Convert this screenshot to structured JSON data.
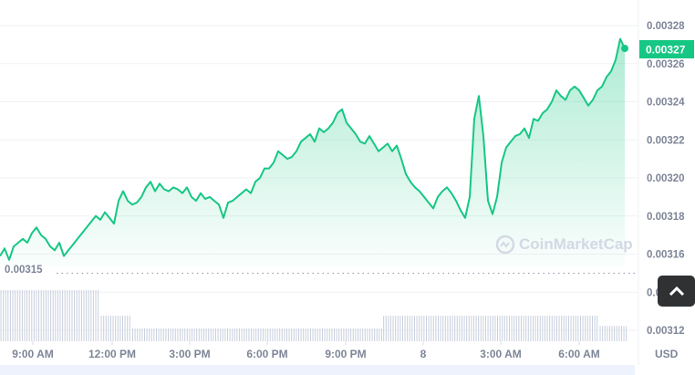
{
  "chart_data": {
    "type": "area",
    "currency": "USD",
    "current_price_label": "0.00327",
    "baseline_label": "0.00315",
    "baseline": 0.00315,
    "ylim": [
      0.00311,
      0.00329
    ],
    "y_ticks": [
      "0.00328",
      "0.00326",
      "0.00324",
      "0.00322",
      "0.00320",
      "0.00318",
      "0.00316",
      "0.00314",
      "0.00312"
    ],
    "x_ticks": [
      "9:00 AM",
      "12:00 PM",
      "3:00 PM",
      "6:00 PM",
      "9:00 PM",
      "8",
      "3:00 AM",
      "6:00 AM"
    ],
    "grid": true,
    "line_color": "#16c784",
    "watermark": "CoinMarketCap",
    "values": [
      0.003159,
      0.003163,
      0.003157,
      0.003164,
      0.003166,
      0.003168,
      0.003166,
      0.003171,
      0.003174,
      0.00317,
      0.003168,
      0.003164,
      0.003162,
      0.003166,
      0.003159,
      0.003162,
      0.003165,
      0.003168,
      0.003171,
      0.003174,
      0.003177,
      0.00318,
      0.003178,
      0.003182,
      0.003179,
      0.003176,
      0.003188,
      0.003193,
      0.003188,
      0.003186,
      0.003187,
      0.00319,
      0.003195,
      0.003198,
      0.003193,
      0.003197,
      0.003194,
      0.003193,
      0.003195,
      0.003194,
      0.003192,
      0.003195,
      0.00319,
      0.003188,
      0.003192,
      0.003189,
      0.00319,
      0.003188,
      0.003186,
      0.003179,
      0.003187,
      0.003188,
      0.00319,
      0.003192,
      0.003194,
      0.003192,
      0.003198,
      0.0032,
      0.003205,
      0.003205,
      0.003208,
      0.003214,
      0.003212,
      0.00321,
      0.003211,
      0.003214,
      0.003219,
      0.003221,
      0.003223,
      0.003219,
      0.003226,
      0.003224,
      0.003226,
      0.003229,
      0.003234,
      0.003236,
      0.003229,
      0.003226,
      0.003223,
      0.003219,
      0.003218,
      0.003222,
      0.003218,
      0.003214,
      0.003216,
      0.003218,
      0.003214,
      0.003217,
      0.00321,
      0.003202,
      0.003198,
      0.003195,
      0.003193,
      0.00319,
      0.003187,
      0.003184,
      0.00319,
      0.003193,
      0.003195,
      0.003192,
      0.003188,
      0.003183,
      0.003179,
      0.00319,
      0.003231,
      0.003243,
      0.003222,
      0.003188,
      0.003181,
      0.00319,
      0.003208,
      0.003216,
      0.003219,
      0.003222,
      0.003223,
      0.003226,
      0.003221,
      0.003231,
      0.00323,
      0.003234,
      0.003236,
      0.00324,
      0.003246,
      0.003243,
      0.003241,
      0.003246,
      0.003248,
      0.003246,
      0.003242,
      0.003238,
      0.003241,
      0.003246,
      0.003248,
      0.003253,
      0.003256,
      0.003262,
      0.003273,
      0.003268
    ],
    "volume_levels": [
      {
        "share": 0.16,
        "level": 1.0
      },
      {
        "share": 0.05,
        "level": 0.5
      },
      {
        "share": 0.4,
        "level": 0.25
      },
      {
        "share": 0.345,
        "level": 0.5
      },
      {
        "share": 0.045,
        "level": 0.3
      }
    ]
  },
  "ui": {
    "scroll_top_icon": "chevron-up-icon"
  }
}
